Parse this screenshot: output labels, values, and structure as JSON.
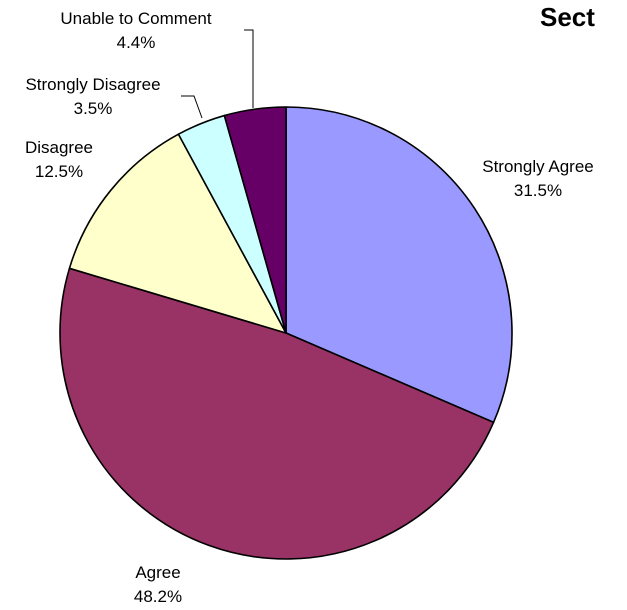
{
  "chart_data": {
    "type": "pie",
    "title": "Sect",
    "start_angle_deg": 0,
    "direction": "clockwise",
    "slices": [
      {
        "label": "Strongly Agree",
        "value_label": "31.5%",
        "value": 31.5,
        "color": "#9999ff"
      },
      {
        "label": "Agree",
        "value_label": "48.2%",
        "value": 48.2,
        "color": "#993366"
      },
      {
        "label": "Disagree",
        "value_label": "12.5%",
        "value": 12.5,
        "color": "#ffffcc"
      },
      {
        "label": "Strongly Disagree",
        "value_label": "3.5%",
        "value": 3.5,
        "color": "#ccffff"
      },
      {
        "label": "Unable to Comment",
        "value_label": "4.4%",
        "value": 4.4,
        "color": "#660066"
      }
    ]
  }
}
